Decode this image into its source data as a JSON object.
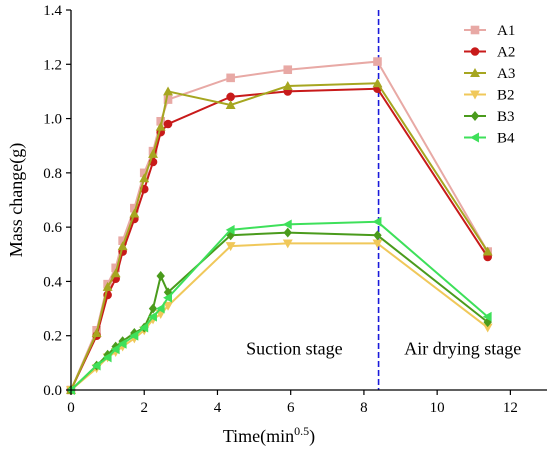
{
  "chart_data": {
    "type": "line",
    "xlabel": "Time(min",
    "xlabel_sup": "0.5",
    "xlabel_end": ")",
    "ylabel": "Mass change(g)",
    "xlim": [
      0,
      13
    ],
    "ylim": [
      0,
      1.4
    ],
    "xticks": [
      0,
      2,
      4,
      6,
      8,
      10,
      12
    ],
    "yticks": [
      0.0,
      0.2,
      0.4,
      0.6,
      0.8,
      1.0,
      1.2,
      1.4
    ],
    "ytick_labels": [
      "0.0",
      "0.2",
      "0.4",
      "0.6",
      "0.8",
      "1.0",
      "1.2",
      "1.4"
    ],
    "grid": false,
    "legend_position": "top-right",
    "divider": {
      "x": 8.4,
      "color": "#1a1adb",
      "style": "dashed"
    },
    "annotations": [
      {
        "text": "Suction stage",
        "x": 6.1,
        "y": 0.13
      },
      {
        "text": "Air drying stage",
        "x": 10.7,
        "y": 0.13
      }
    ],
    "series": [
      {
        "name": "A1",
        "color": "#e8a9a5",
        "marker": "square",
        "x": [
          0,
          0.7,
          1.0,
          1.22,
          1.41,
          1.73,
          2.0,
          2.24,
          2.45,
          2.65,
          4.36,
          5.92,
          8.37,
          11.38
        ],
        "y": [
          0,
          0.22,
          0.39,
          0.45,
          0.55,
          0.67,
          0.8,
          0.88,
          0.99,
          1.07,
          1.15,
          1.18,
          1.21,
          0.51
        ]
      },
      {
        "name": "A2",
        "color": "#c81a1a",
        "marker": "circle",
        "x": [
          0,
          0.7,
          1.0,
          1.22,
          1.41,
          1.73,
          2.0,
          2.24,
          2.45,
          2.65,
          4.36,
          5.92,
          8.37,
          11.38
        ],
        "y": [
          0,
          0.2,
          0.35,
          0.41,
          0.51,
          0.63,
          0.74,
          0.84,
          0.95,
          0.98,
          1.08,
          1.1,
          1.11,
          0.49
        ]
      },
      {
        "name": "A3",
        "color": "#a6a620",
        "marker": "triangle-up",
        "x": [
          0,
          0.7,
          1.0,
          1.22,
          1.41,
          1.73,
          2.0,
          2.24,
          2.45,
          2.65,
          4.36,
          5.92,
          8.37,
          11.38
        ],
        "y": [
          0,
          0.21,
          0.38,
          0.43,
          0.53,
          0.65,
          0.78,
          0.87,
          0.97,
          1.1,
          1.05,
          1.12,
          1.13,
          0.51
        ]
      },
      {
        "name": "B2",
        "color": "#f0c85a",
        "marker": "triangle-down",
        "x": [
          0,
          0.7,
          1.0,
          1.22,
          1.41,
          1.73,
          2.0,
          2.24,
          2.45,
          2.65,
          4.36,
          5.92,
          8.37,
          11.38
        ],
        "y": [
          0,
          0.08,
          0.12,
          0.14,
          0.16,
          0.19,
          0.22,
          0.26,
          0.28,
          0.31,
          0.53,
          0.54,
          0.54,
          0.23
        ]
      },
      {
        "name": "B3",
        "color": "#4a9b1c",
        "marker": "diamond",
        "x": [
          0,
          0.7,
          1.0,
          1.22,
          1.41,
          1.73,
          2.0,
          2.24,
          2.45,
          2.65,
          4.36,
          5.92,
          8.37,
          11.38
        ],
        "y": [
          0,
          0.09,
          0.13,
          0.16,
          0.18,
          0.21,
          0.23,
          0.3,
          0.42,
          0.36,
          0.57,
          0.58,
          0.57,
          0.25
        ]
      },
      {
        "name": "B4",
        "color": "#3ee05a",
        "marker": "triangle-left",
        "x": [
          0,
          0.7,
          1.0,
          1.22,
          1.41,
          1.73,
          2.0,
          2.24,
          2.45,
          2.65,
          4.36,
          5.92,
          8.37,
          11.38
        ],
        "y": [
          0,
          0.09,
          0.12,
          0.15,
          0.17,
          0.2,
          0.23,
          0.27,
          0.3,
          0.34,
          0.59,
          0.61,
          0.62,
          0.27
        ]
      }
    ]
  }
}
